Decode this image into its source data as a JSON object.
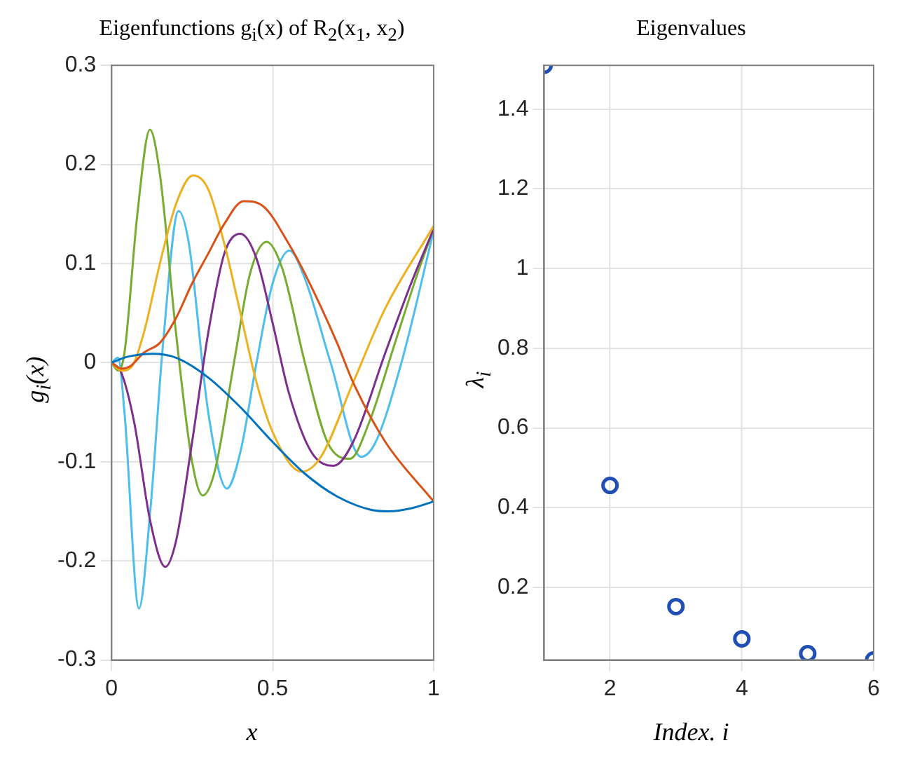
{
  "chart_data": [
    {
      "type": "line",
      "title": "Eigenfunctions g$_{i}$(x) of R$_{2}$(x$_{1}$, x$_{2}$)",
      "xlabel": "x",
      "ylabel": "g$_{i}$(x)",
      "xlim": [
        0,
        1
      ],
      "xticks": [
        0,
        0.5,
        1
      ],
      "ylim": [
        -0.3,
        0.3
      ],
      "yticks": [
        -0.3,
        -0.2,
        -0.1,
        0,
        0.1,
        0.2,
        0.3
      ],
      "grid": true,
      "marker": "none",
      "line_style": "solid",
      "series": [
        {
          "color": "#0072bd",
          "x": [
            0,
            0.05,
            0.13,
            0.2,
            0.3,
            0.4,
            0.5,
            0.6,
            0.7,
            0.8,
            0.86,
            0.93,
            1
          ],
          "values": [
            0,
            0.006,
            0.009,
            0.005,
            -0.015,
            -0.045,
            -0.08,
            -0.112,
            -0.135,
            -0.148,
            -0.15,
            -0.147,
            -0.14
          ]
        },
        {
          "color": "#d95319",
          "x": [
            0,
            0.03,
            0.06,
            0.1,
            0.15,
            0.2,
            0.25,
            0.3,
            0.35,
            0.41,
            0.47,
            0.55,
            0.6,
            0.7,
            0.75,
            0.85,
            1
          ],
          "values": [
            0,
            -0.006,
            -0.003,
            0.01,
            0.02,
            0.045,
            0.08,
            0.11,
            0.14,
            0.163,
            0.158,
            0.12,
            0.09,
            0.02,
            -0.02,
            -0.08,
            -0.14
          ]
        },
        {
          "color": "#edb120",
          "x": [
            0,
            0.03,
            0.06,
            0.1,
            0.15,
            0.2,
            0.253,
            0.3,
            0.35,
            0.4,
            0.45,
            0.5,
            0.59,
            0.65,
            0.75,
            0.85,
            1
          ],
          "values": [
            0,
            -0.008,
            -0.005,
            0.03,
            0.1,
            0.16,
            0.189,
            0.175,
            0.12,
            0.05,
            -0.02,
            -0.07,
            -0.11,
            -0.095,
            -0.02,
            0.055,
            0.138
          ]
        },
        {
          "color": "#7e2f8e",
          "x": [
            0,
            0.03,
            0.07,
            0.12,
            0.167,
            0.2,
            0.25,
            0.3,
            0.35,
            0.4,
            0.45,
            0.5,
            0.55,
            0.62,
            0.69,
            0.75,
            0.85,
            0.93,
            1
          ],
          "values": [
            0,
            -0.01,
            -0.06,
            -0.16,
            -0.206,
            -0.18,
            -0.08,
            0.03,
            0.11,
            0.13,
            0.105,
            0.04,
            -0.03,
            -0.09,
            -0.104,
            -0.08,
            0.01,
            0.08,
            0.135
          ]
        },
        {
          "color": "#77ac30",
          "x": [
            0,
            0.02,
            0.04,
            0.08,
            0.119,
            0.15,
            0.2,
            0.25,
            0.283,
            0.32,
            0.38,
            0.43,
            0.481,
            0.53,
            0.6,
            0.67,
            0.74,
            0.8,
            0.88,
            0.95,
            1
          ],
          "values": [
            0,
            -0.008,
            0.01,
            0.15,
            0.235,
            0.19,
            0.03,
            -0.1,
            -0.134,
            -0.11,
            0,
            0.09,
            0.122,
            0.095,
            0,
            -0.08,
            -0.097,
            -0.06,
            0.02,
            0.09,
            0.135
          ]
        },
        {
          "color": "#4dbeee",
          "x": [
            0,
            0.02,
            0.04,
            0.085,
            0.12,
            0.16,
            0.208,
            0.24,
            0.3,
            0.358,
            0.4,
            0.45,
            0.5,
            0.552,
            0.6,
            0.68,
            0.775,
            0.82,
            0.9,
            1
          ],
          "values": [
            0,
            0.005,
            -0.05,
            -0.248,
            -0.15,
            0.02,
            0.153,
            0.12,
            -0.05,
            -0.127,
            -0.09,
            0,
            0.08,
            0.113,
            0.085,
            0,
            -0.095,
            -0.08,
            0,
            0.133
          ]
        }
      ]
    },
    {
      "type": "scatter",
      "title": "Eigenvalues",
      "xlabel": "Index. i",
      "ylabel": "λ$_{i}$",
      "xlim": [
        1,
        6
      ],
      "xticks": [
        2,
        4,
        6
      ],
      "ylim": [
        0.018,
        1.51
      ],
      "yticks": [
        0.2,
        0.4,
        0.6,
        0.8,
        1,
        1.2,
        1.4
      ],
      "grid": true,
      "marker": "circle",
      "x": [
        1,
        2,
        3,
        4,
        5,
        6
      ],
      "series": [
        {
          "color": "#1f4fb4",
          "values": [
            1.51,
            0.456,
            0.152,
            0.071,
            0.034,
            0.018
          ]
        }
      ]
    }
  ]
}
